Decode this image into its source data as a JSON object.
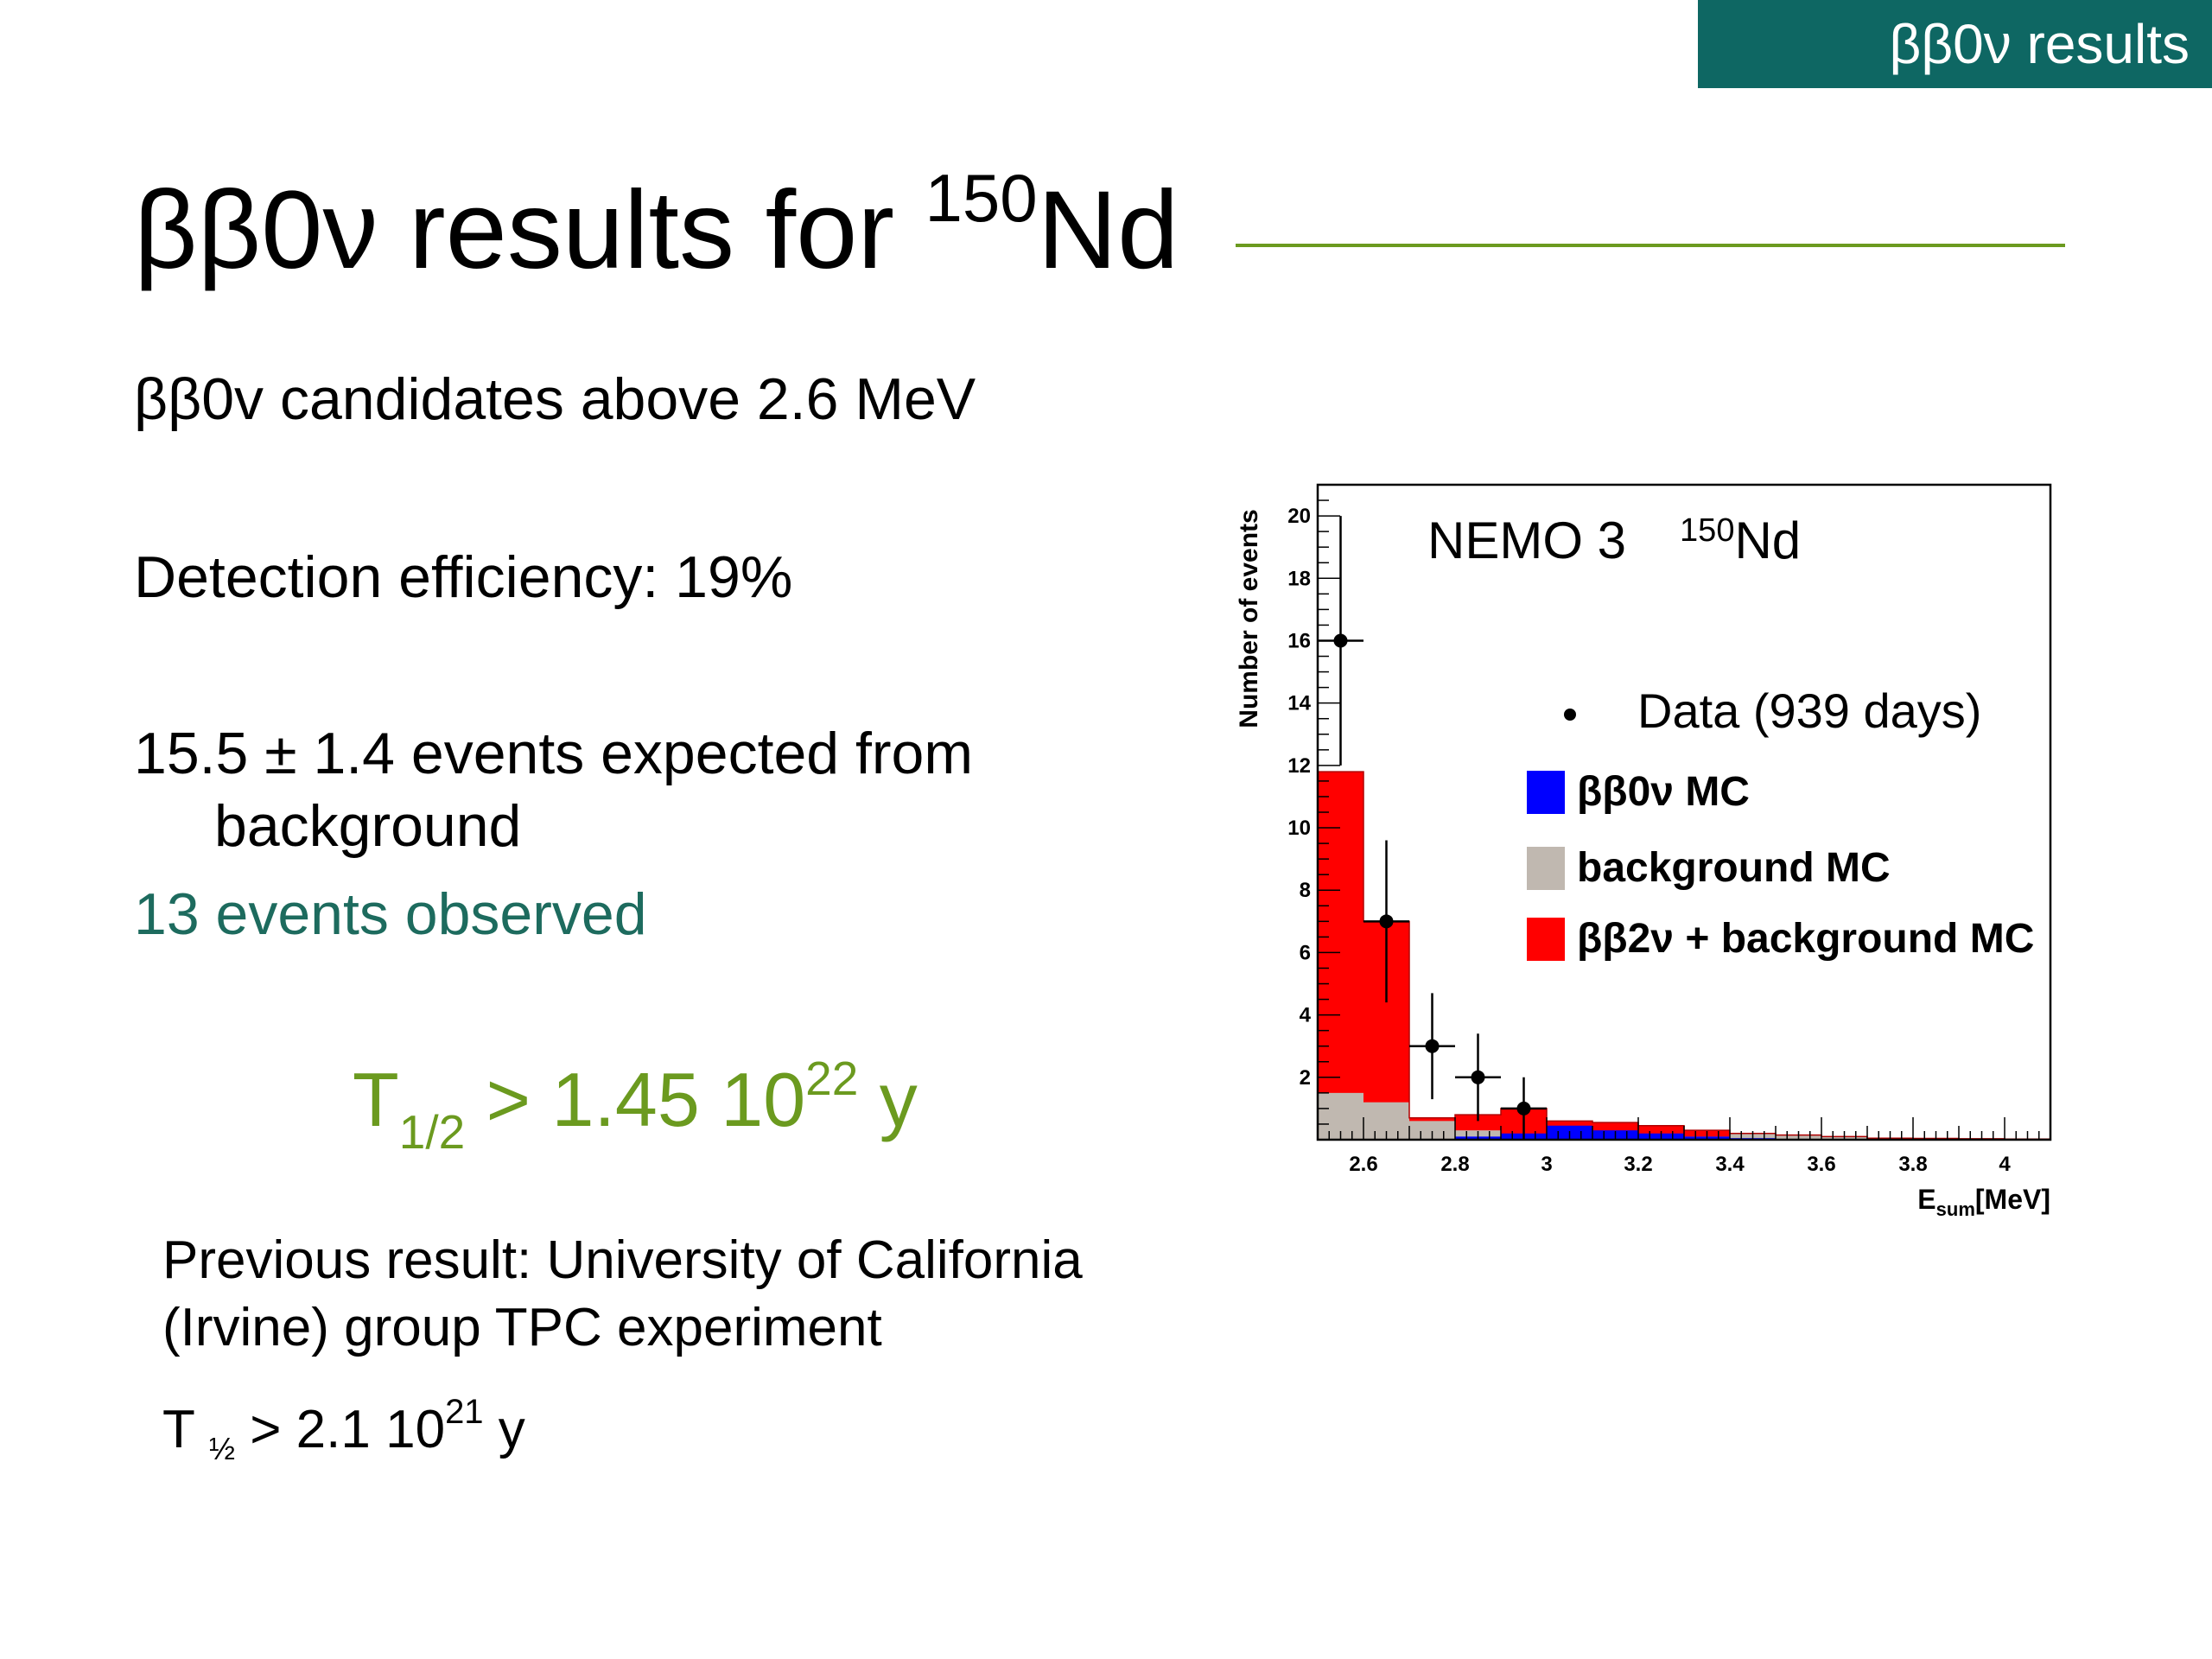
{
  "header": {
    "section_tab": "ββ0ν results"
  },
  "title": {
    "main": "ββ0ν results for ",
    "isotope_mass": "150",
    "isotope_symbol": "Nd"
  },
  "body": {
    "line1": "ββ0v candidates above 2.6 MeV",
    "line2": "Detection efficiency: 19%",
    "line3a": "15.5 ± 1.4 events expected from",
    "line3b": "background",
    "line4": "13 events observed",
    "limit": {
      "prefix": "T",
      "sub": "1/2",
      "mid": " > 1.45 10",
      "exp": "22",
      "unit": " y"
    },
    "previous_line1": "Previous result: University of California",
    "previous_line2": "(Irvine) group TPC experiment",
    "previous_limit": {
      "prefix": "T ",
      "sub": "½",
      "mid": " > 2.1 10",
      "exp": "21",
      "unit": " y"
    }
  },
  "colors": {
    "tab_bg": "#0e6763",
    "title_rule": "#6b9a1f",
    "observed_text": "#1d6b5e",
    "limit_text": "#6b9a1f",
    "bb0v_mc": "#0000ff",
    "background_mc": "#c0b8b0",
    "bb2v_mc": "#ff0000"
  },
  "chart_data": {
    "type": "bar",
    "title_main": "NEMO 3",
    "title_mass": "150",
    "title_symbol": "Nd",
    "xlabel_main": "E",
    "xlabel_sub": "sum",
    "xlabel_unit": "[MeV]",
    "ylabel": "Number of events",
    "xlim": [
      2.5,
      4.1
    ],
    "ylim": [
      0,
      21
    ],
    "x_ticks": [
      "2.6",
      "2.8",
      "3",
      "3.2",
      "3.4",
      "3.6",
      "3.8",
      "4"
    ],
    "y_ticks": [
      "2",
      "4",
      "6",
      "8",
      "10",
      "12",
      "14",
      "16",
      "18",
      "20"
    ],
    "bin_edges": [
      2.5,
      2.6,
      2.7,
      2.8,
      2.9,
      3.0,
      3.1,
      3.2,
      3.3,
      3.4,
      3.5,
      3.6,
      3.7,
      3.8,
      3.9,
      4.0,
      4.1
    ],
    "series": [
      {
        "name": "ββ2ν + background MC",
        "values": [
          11.8,
          7.0,
          0.7,
          0.8,
          1.0,
          0.6,
          0.55,
          0.45,
          0.3,
          0.2,
          0.15,
          0.1,
          0.05,
          0.04,
          0.03,
          0.02
        ]
      },
      {
        "name": "background MC",
        "values": [
          1.5,
          1.2,
          0.6,
          0.3,
          0.05,
          0.0,
          0.0,
          0.05,
          0.1,
          0.2,
          0.15,
          0.1,
          0.05,
          0.04,
          0.03,
          0.02
        ]
      },
      {
        "name": "ββ0ν MC",
        "values": [
          0.0,
          0.0,
          0.0,
          0.1,
          0.2,
          0.45,
          0.3,
          0.2,
          0.1,
          0.05,
          0.0,
          0.0,
          0.0,
          0.0,
          0.0,
          0.0
        ]
      }
    ],
    "data_points": {
      "name": "Data (939 days)",
      "x": [
        2.55,
        2.65,
        2.75,
        2.85,
        2.95
      ],
      "y": [
        16,
        7,
        3,
        2,
        1
      ],
      "yerr": [
        4,
        2.6,
        1.7,
        1.4,
        1.0
      ]
    },
    "legend_position": "top-right"
  }
}
